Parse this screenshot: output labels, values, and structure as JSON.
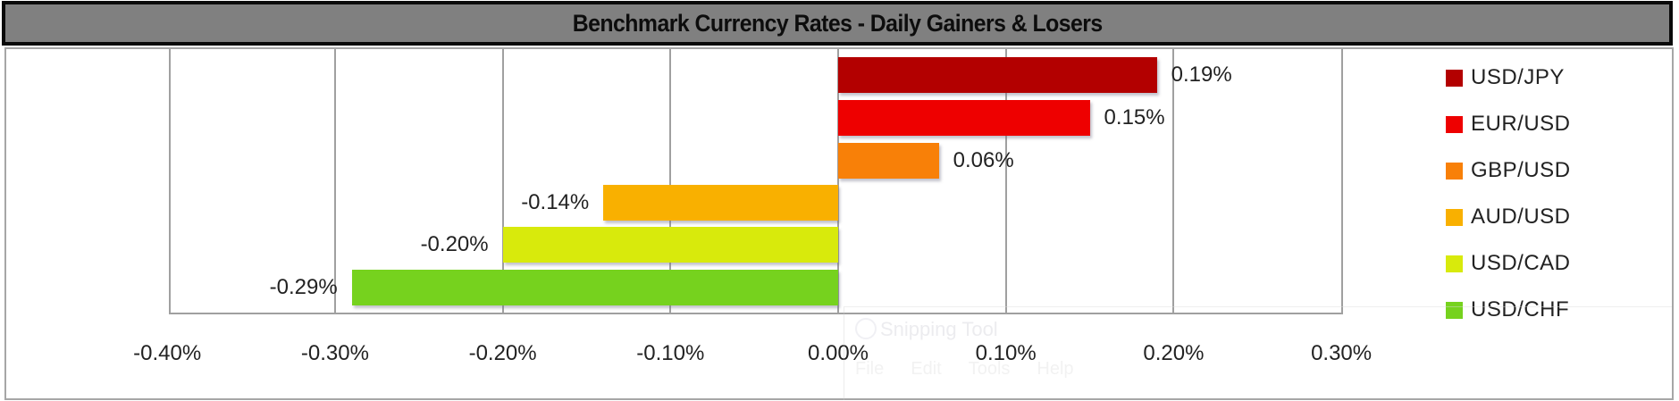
{
  "chart_data": {
    "type": "bar",
    "orientation": "horizontal",
    "title": "Benchmark Currency Rates - Daily Gainers & Losers",
    "xlabel": "",
    "ylabel": "",
    "xlim": [
      -0.4,
      0.3
    ],
    "x_ticks": [
      "-0.40%",
      "-0.30%",
      "-0.20%",
      "-0.10%",
      "0.00%",
      "0.10%",
      "0.20%",
      "0.30%"
    ],
    "grid": "vertical",
    "legend_position": "right",
    "categories": [
      "USD/JPY",
      "EUR/USD",
      "GBP/USD",
      "AUD/USD",
      "USD/CAD",
      "USD/CHF"
    ],
    "values": [
      0.19,
      0.15,
      0.06,
      -0.14,
      -0.2,
      -0.29
    ],
    "value_labels": [
      "0.19%",
      "0.15%",
      "0.06%",
      "-0.14%",
      "-0.20%",
      "-0.29%"
    ],
    "colors": [
      "#B30000",
      "#EE0000",
      "#F88008",
      "#F9B000",
      "#D8EA0C",
      "#76D21E"
    ],
    "unit": "%"
  },
  "title": "Benchmark Currency Rates - Daily Gainers & Losers",
  "ticks": [
    {
      "label": "-0.40%",
      "value": -0.4
    },
    {
      "label": "-0.30%",
      "value": -0.3
    },
    {
      "label": "-0.20%",
      "value": -0.2
    },
    {
      "label": "-0.10%",
      "value": -0.1
    },
    {
      "label": "0.00%",
      "value": 0.0
    },
    {
      "label": "0.10%",
      "value": 0.1
    },
    {
      "label": "0.20%",
      "value": 0.2
    },
    {
      "label": "0.30%",
      "value": 0.3
    }
  ],
  "series": [
    {
      "name": "USD/JPY",
      "value": 0.19,
      "label": "0.19%",
      "color": "#B30000"
    },
    {
      "name": "EUR/USD",
      "value": 0.15,
      "label": "0.15%",
      "color": "#EE0000"
    },
    {
      "name": "GBP/USD",
      "value": 0.06,
      "label": "0.06%",
      "color": "#F88008"
    },
    {
      "name": "AUD/USD",
      "value": -0.14,
      "label": "-0.14%",
      "color": "#F9B000"
    },
    {
      "name": "USD/CAD",
      "value": -0.2,
      "label": "-0.20%",
      "color": "#D8EA0C"
    },
    {
      "name": "USD/CHF",
      "value": -0.29,
      "label": "-0.29%",
      "color": "#76D21E"
    }
  ],
  "ghost_window": {
    "title": "Snipping Tool",
    "menu": [
      "File",
      "Edit",
      "Tools",
      "Help"
    ]
  }
}
